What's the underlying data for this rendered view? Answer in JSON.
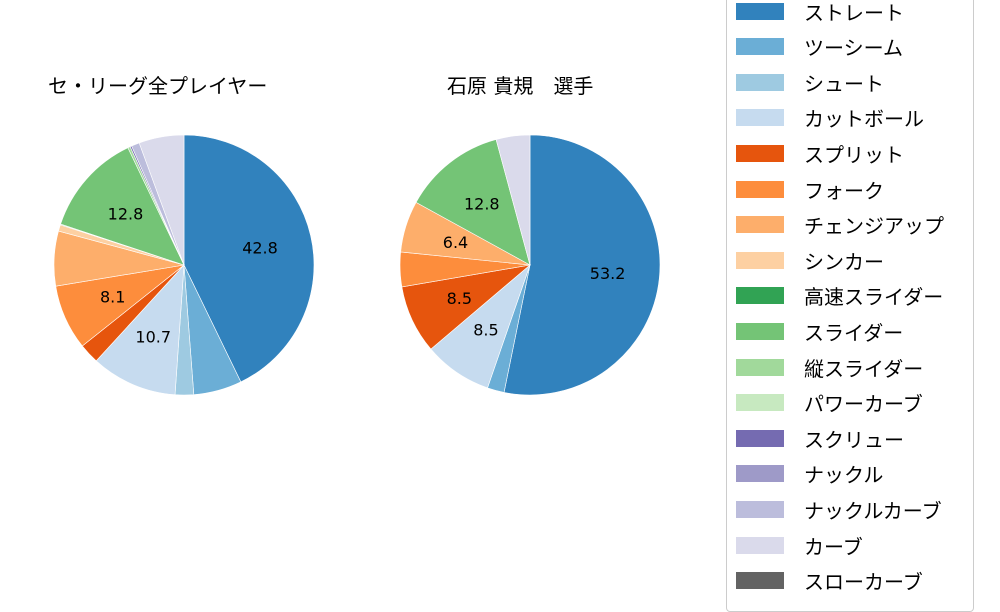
{
  "chart_data": [
    {
      "type": "pie",
      "title": "セ・リーグ全プレイヤー",
      "start_angle": 90,
      "direction": "clockwise",
      "categories": [
        "ストレート",
        "ツーシーム",
        "シュート",
        "カットボール",
        "スプリット",
        "フォーク",
        "チェンジアップ",
        "シンカー",
        "高速スライダー",
        "スライダー",
        "縦スライダー",
        "スクリュー",
        "ナックルカーブ",
        "カーブ"
      ],
      "values": [
        42.8,
        6.0,
        2.3,
        10.7,
        2.5,
        8.1,
        6.8,
        0.8,
        0.1,
        12.8,
        0.3,
        0.2,
        1.0,
        5.6
      ],
      "labels_shown": {
        "ストレート": "42.8",
        "カットボール": "10.7",
        "フォーク": "8.1",
        "スライダー": "12.8"
      }
    },
    {
      "type": "pie",
      "title": "石原 貴規　選手",
      "start_angle": 90,
      "direction": "clockwise",
      "categories": [
        "ストレート",
        "ツーシーム",
        "カットボール",
        "スプリット",
        "フォーク",
        "チェンジアップ",
        "スライダー",
        "カーブ"
      ],
      "values": [
        53.2,
        2.1,
        8.5,
        8.5,
        4.3,
        6.4,
        12.8,
        4.2
      ],
      "labels_shown": {
        "ストレート": "53.2",
        "カットボール": "8.5",
        "スプリット": "8.5",
        "チェンジアップ": "6.4",
        "スライダー": "12.8"
      }
    }
  ],
  "titles": {
    "left": "セ・リーグ全プレイヤー",
    "right": "石原 貴規　選手"
  },
  "legend": {
    "position": "right",
    "items": [
      {
        "label": "ストレート",
        "color": "#3182bd"
      },
      {
        "label": "ツーシーム",
        "color": "#6baed6"
      },
      {
        "label": "シュート",
        "color": "#9ecae1"
      },
      {
        "label": "カットボール",
        "color": "#c6dbef"
      },
      {
        "label": "スプリット",
        "color": "#e6550d"
      },
      {
        "label": "フォーク",
        "color": "#fd8d3c"
      },
      {
        "label": "チェンジアップ",
        "color": "#fdae6b"
      },
      {
        "label": "シンカー",
        "color": "#fdd0a2"
      },
      {
        "label": "高速スライダー",
        "color": "#31a354"
      },
      {
        "label": "スライダー",
        "color": "#74c476"
      },
      {
        "label": "縦スライダー",
        "color": "#a1d99b"
      },
      {
        "label": "パワーカーブ",
        "color": "#c7e9c0"
      },
      {
        "label": "スクリュー",
        "color": "#756bb1"
      },
      {
        "label": "ナックル",
        "color": "#9e9ac8"
      },
      {
        "label": "ナックルカーブ",
        "color": "#bcbddc"
      },
      {
        "label": "カーブ",
        "color": "#dadaeb"
      },
      {
        "label": "スローカーブ",
        "color": "#636363"
      }
    ]
  }
}
